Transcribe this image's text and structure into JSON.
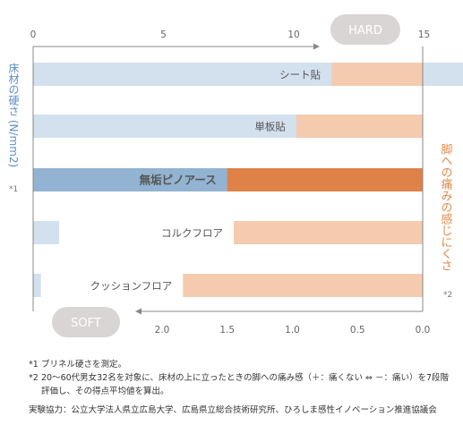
{
  "chart_data": {
    "type": "bar",
    "categories": [
      "シート貼",
      "単板貼",
      "無垢ピノアース",
      "コルクフロア",
      "クッションフロア"
    ],
    "highlight_category": "無垢ピノアース",
    "series": [
      {
        "name": "床材の硬さ (N/mm2)",
        "values": [
          17.5,
          10.8,
          7.7,
          1.0,
          0.3
        ]
      },
      {
        "name": "脚への痛みの感じにくさ",
        "values": [
          0.7,
          0.97,
          1.5,
          1.45,
          1.84
        ]
      }
    ],
    "hardness_axis": {
      "label": "床材の硬さ (N/mm2)",
      "note": "*1",
      "ticks": [
        "0",
        "5",
        "10",
        "15",
        "20"
      ],
      "range": [
        0,
        30
      ]
    },
    "pain_axis": {
      "label": "脚への痛みの感じにくさ",
      "note": "*2",
      "ticks": [
        "2.0",
        "1.5",
        "1.0",
        "0.5",
        "0.0"
      ],
      "range": [
        0,
        3
      ]
    },
    "hard_label": "HARD",
    "soft_label": "SOFT",
    "colors": {
      "hard_bar": "#d3e0ee",
      "hard_bar_highlight": "#92b3d1",
      "pain_bar": "#f4cbae",
      "pain_bar_highlight": "#de8248",
      "hardness_text": "#5b8fc4",
      "pain_text": "#e08a4a",
      "pill": "#d9d5d4",
      "axis": "#888888"
    }
  },
  "notes": [
    {
      "mark": "*1",
      "text": "ブリネル硬さを測定。"
    },
    {
      "mark": "*2",
      "text": "20～60代男女32名を対象に、床材の上に立ったときの脚への痛み感（＋：痛くない ⇔ －：痛い）を7段階評価し、その得点平均値を算出。"
    }
  ],
  "credit": "実験協力：公立大学法人県立広島大学、広島県立総合技術研究所、ひろしま感性イノベーション推進協議会"
}
